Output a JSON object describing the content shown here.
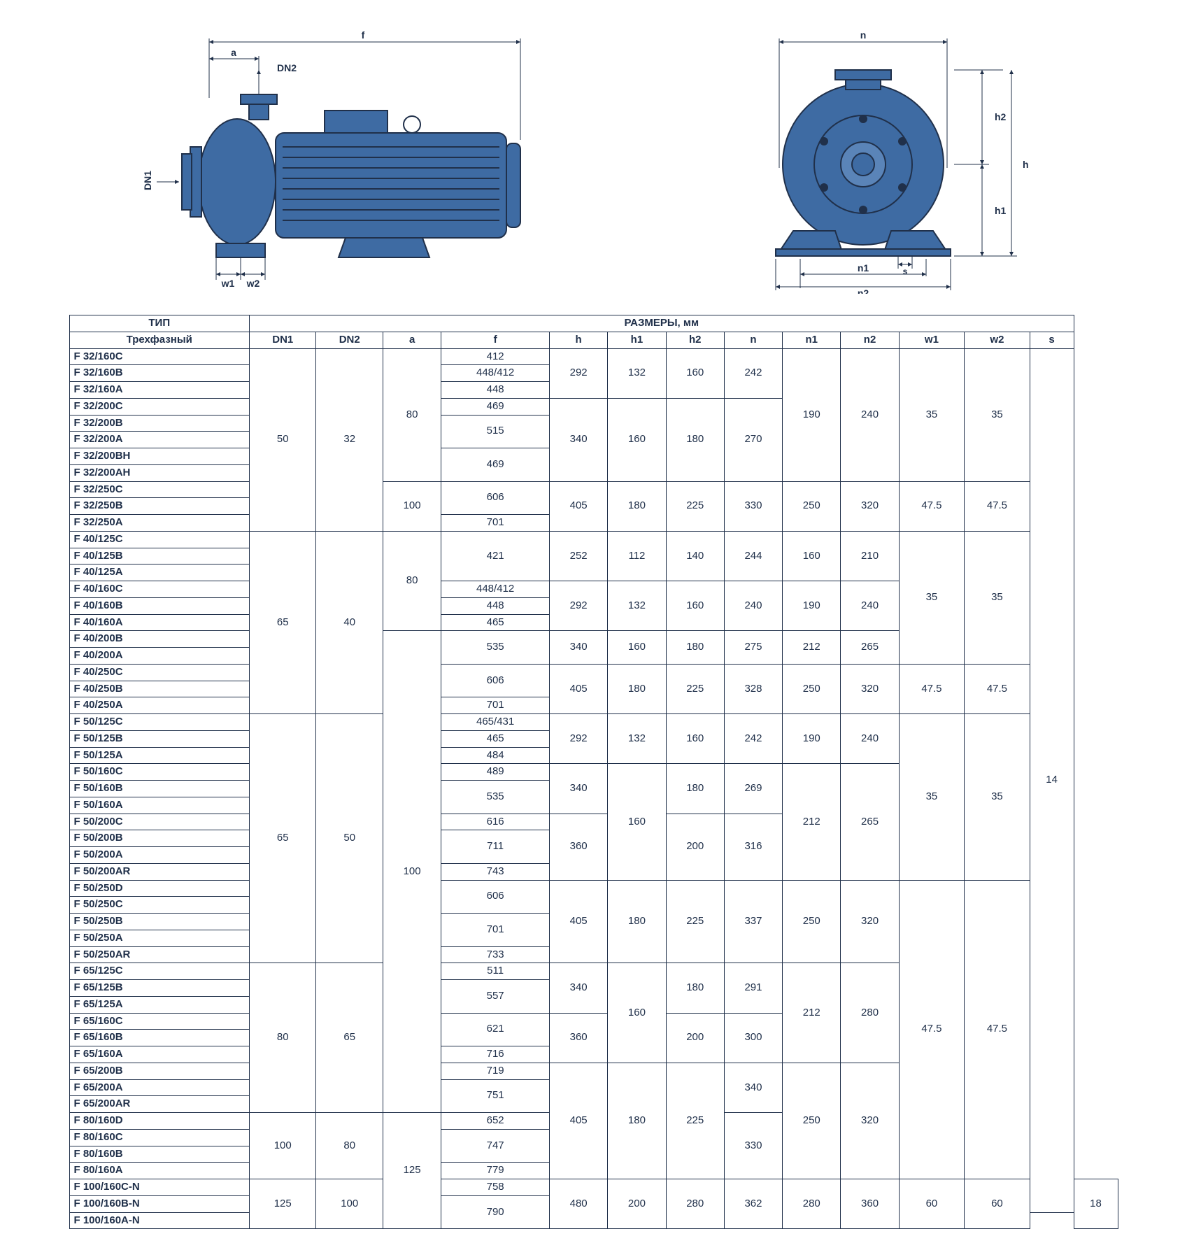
{
  "diagrams": {
    "pump_color": "#3e6ba3",
    "pump_stroke": "#20304a",
    "labels": {
      "a": "a",
      "f": "f",
      "DN1": "DN1",
      "DN2": "DN2",
      "w1": "w1",
      "w2": "w2",
      "n": "n",
      "n1": "n1",
      "n2": "n2",
      "h": "h",
      "h1": "h1",
      "h2": "h2",
      "s": "s"
    }
  },
  "table": {
    "header_type": "ТИП",
    "header_dims": "РАЗМЕРЫ, мм",
    "sub_type": "Трехфазный",
    "cols": [
      "DN1",
      "DN2",
      "a",
      "f",
      "h",
      "h1",
      "h2",
      "n",
      "n1",
      "n2",
      "w1",
      "w2",
      "s"
    ]
  },
  "groups": [
    {
      "DN1": "50",
      "DN2": "32",
      "sub": [
        {
          "a": "80",
          "blocks": [
            {
              "types": [
                "F 32/160C",
                "F 32/160B",
                "F 32/160A"
              ],
              "f": [
                "412",
                "448/412",
                "448"
              ],
              "h": "292",
              "h1": "132",
              "h2": "160",
              "n": "242",
              "n1": "190",
              "n2": "240",
              "w1": "35",
              "w2": "35"
            },
            {
              "types": [
                "F 32/200C",
                "F 32/200B",
                "F 32/200A",
                "F 32/200BH",
                "F 32/200AH"
              ],
              "f": [
                "469",
                "{2}515",
                "{2}469"
              ],
              "h": "340",
              "h1": "160",
              "h2": "180",
              "n": "270",
              "n1": "190",
              "n2": "240",
              "w1": "35",
              "w2": "35",
              "share_n1n2w": true
            }
          ]
        },
        {
          "a": "100",
          "blocks": [
            {
              "types": [
                "F 32/250C",
                "F 32/250B",
                "F 32/250A"
              ],
              "f": [
                "{2}606",
                "701"
              ],
              "h": "405",
              "h1": "180",
              "h2": "225",
              "n": "330",
              "n1": "250",
              "n2": "320",
              "w1": "47.5",
              "w2": "47.5"
            }
          ]
        }
      ]
    },
    {
      "DN1": "65",
      "DN2": "40",
      "sub": [
        {
          "a": "80",
          "blocks": [
            {
              "types": [
                "F 40/125C",
                "F 40/125B",
                "F 40/125A"
              ],
              "f": [
                "{3}421"
              ],
              "h": "252",
              "h1": "112",
              "h2": "140",
              "n": "244",
              "n1": "160",
              "n2": "210",
              "w1": "35",
              "w2": "35"
            },
            {
              "types": [
                "F 40/160C",
                "F 40/160B",
                "F 40/160A"
              ],
              "f": [
                "448/412",
                "448",
                "465"
              ],
              "h": "292",
              "h1": "132",
              "h2": "160",
              "n": "240",
              "n1": "190",
              "n2": "240",
              "w1": "35",
              "w2": "35",
              "share_w": true
            }
          ]
        },
        {
          "a": "100",
          "a_shared_below": true,
          "blocks": [
            {
              "types": [
                "F 40/200B",
                "F 40/200A"
              ],
              "f": [
                "{2}535"
              ],
              "h": "340",
              "h1": "160",
              "h2": "180",
              "n": "275",
              "n1": "212",
              "n2": "265",
              "w1": "35",
              "w2": "35",
              "share_w": true
            },
            {
              "types": [
                "F 40/250C",
                "F 40/250B",
                "F 40/250A"
              ],
              "f": [
                "{2}606",
                "701"
              ],
              "h": "405",
              "h1": "180",
              "h2": "225",
              "n": "328",
              "n1": "250",
              "n2": "320",
              "w1": "47.5",
              "w2": "47.5"
            }
          ]
        }
      ]
    },
    {
      "DN1": "65",
      "DN2": "50",
      "a_inherit": true,
      "sub": [
        {
          "a": "100",
          "blocks": [
            {
              "types": [
                "F 50/125C",
                "F 50/125B",
                "F 50/125A"
              ],
              "f": [
                "465/431",
                "465",
                "484"
              ],
              "h": "292",
              "h1": "132",
              "h2": "160",
              "n": "242",
              "n1": "190",
              "n2": "240",
              "w1": "35",
              "w2": "35"
            },
            {
              "types": [
                "F 50/160C",
                "F 50/160B",
                "F 50/160A"
              ],
              "f": [
                "489",
                "{2}535"
              ],
              "h": "340",
              "h1": "160",
              "h2": "180",
              "n": "269",
              "n1": "212",
              "n2": "265",
              "w1": "35",
              "w2": "35",
              "share_h1": true,
              "share_n1n2": true,
              "share_w": true
            },
            {
              "types": [
                "F 50/200C",
                "F 50/200B",
                "F 50/200A",
                "F 50/200AR"
              ],
              "f": [
                "616",
                "{2}711",
                "743"
              ],
              "h": "360",
              "h1": "160",
              "h2": "200",
              "n": "316",
              "n1": "212",
              "n2": "265",
              "w1": "35",
              "w2": "35",
              "share_h1": true,
              "share_n1n2": true,
              "share_w": true
            },
            {
              "types": [
                "F 50/250D",
                "F 50/250C",
                "F 50/250B",
                "F 50/250A",
                "F 50/250AR"
              ],
              "f": [
                "{2}606",
                "{2}701",
                "733"
              ],
              "h": "405",
              "h1": "180",
              "h2": "225",
              "n": "337",
              "n1": "250",
              "n2": "320",
              "w1": "47.5",
              "w2": "47.5"
            }
          ]
        }
      ]
    },
    {
      "DN1": "80",
      "DN2": "65",
      "a_inherit": true,
      "sub": [
        {
          "a": "100",
          "blocks": [
            {
              "types": [
                "F 65/125C",
                "F 65/125B",
                "F 65/125A"
              ],
              "f": [
                "511",
                "{2}557"
              ],
              "h": "340",
              "h1": "160",
              "h2": "180",
              "n": "291",
              "n1": "212",
              "n2": "280",
              "w1": "47.5",
              "w2": "47.5",
              "share_h1": true,
              "share_n1n2": true
            },
            {
              "types": [
                "F 65/160C",
                "F 65/160B",
                "F 65/160A"
              ],
              "f": [
                "{2}621",
                "716"
              ],
              "h": "360",
              "h1": "160",
              "h2": "200",
              "n": "300",
              "n1": "212",
              "n2": "280",
              "w1": "47.5",
              "w2": "47.5",
              "share_h1": true,
              "share_n1n2": true,
              "share_w": true
            },
            {
              "types": [
                "F 65/200B",
                "F 65/200A",
                "F 65/200AR"
              ],
              "f": [
                "719",
                "{2}751"
              ],
              "h": "405",
              "h1": "180",
              "h2": "225",
              "n": "340",
              "n1": "250",
              "n2": "320",
              "w1": "47.5",
              "w2": "47.5",
              "share_w": true,
              "share_hh1h2": true,
              "share_n1n2_below": true
            }
          ]
        }
      ]
    },
    {
      "DN1": "100",
      "DN2": "80",
      "a_self": "125",
      "a_shared_below2": true,
      "sub": [
        {
          "a": "125",
          "blocks": [
            {
              "types": [
                "F 80/160D",
                "F 80/160C",
                "F 80/160B",
                "F 80/160A"
              ],
              "f": [
                "652",
                "{2}747",
                "779"
              ],
              "h": "405",
              "h1": "180",
              "h2": "225",
              "n": "330",
              "n1": "250",
              "n2": "320",
              "w1": "47.5",
              "w2": "47.5",
              "share_hh1h2": true,
              "share_n1n2": true,
              "share_w": true
            }
          ]
        }
      ]
    },
    {
      "DN1": "125",
      "DN2": "100",
      "a_inherit": true,
      "sub": [
        {
          "a": "125",
          "blocks": [
            {
              "types": [
                "F 100/160C-N",
                "F 100/160B-N",
                "F 100/160A-N"
              ],
              "f": [
                "758",
                "{2}790"
              ],
              "h": "480",
              "h1": "200",
              "h2": "280",
              "n": "362",
              "n1": "280",
              "n2": "360",
              "w1": "60",
              "w2": "60",
              "s": "18"
            }
          ]
        }
      ]
    }
  ],
  "s_top": "14"
}
